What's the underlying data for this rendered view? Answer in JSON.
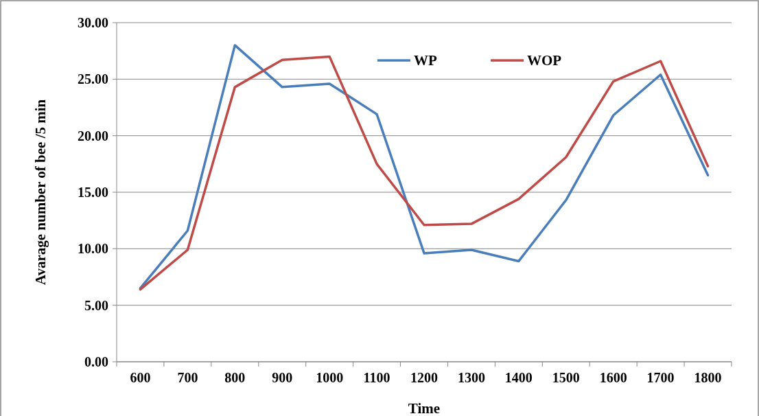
{
  "chart_data": {
    "type": "line",
    "xlabel": "Time",
    "ylabel": "Avarage number  of bee /5 min",
    "categories": [
      "600",
      "700",
      "800",
      "900",
      "1000",
      "1100",
      "1200",
      "1300",
      "1400",
      "1500",
      "1600",
      "1700",
      "1800"
    ],
    "series": [
      {
        "name": "WP",
        "color": "#4a7ebb",
        "values": [
          6.5,
          11.6,
          28.0,
          24.3,
          24.6,
          21.9,
          9.6,
          9.9,
          8.9,
          14.3,
          21.8,
          25.4,
          16.5
        ]
      },
      {
        "name": "WOP",
        "color": "#be4b48",
        "values": [
          6.4,
          9.9,
          24.3,
          26.7,
          27.0,
          17.5,
          12.1,
          12.2,
          14.4,
          18.1,
          24.8,
          26.6,
          17.3
        ]
      }
    ],
    "ylim": [
      0,
      30
    ],
    "yticks": [
      {
        "value": 0,
        "label": "0.00"
      },
      {
        "value": 5,
        "label": "5.00"
      },
      {
        "value": 10,
        "label": "10.00"
      },
      {
        "value": 15,
        "label": "15.00"
      },
      {
        "value": 20,
        "label": "20.00"
      },
      {
        "value": 25,
        "label": "25.00"
      },
      {
        "value": 30,
        "label": "30.00"
      }
    ],
    "grid": "y",
    "legend": "top",
    "marker": "none",
    "line_style": "solid"
  }
}
